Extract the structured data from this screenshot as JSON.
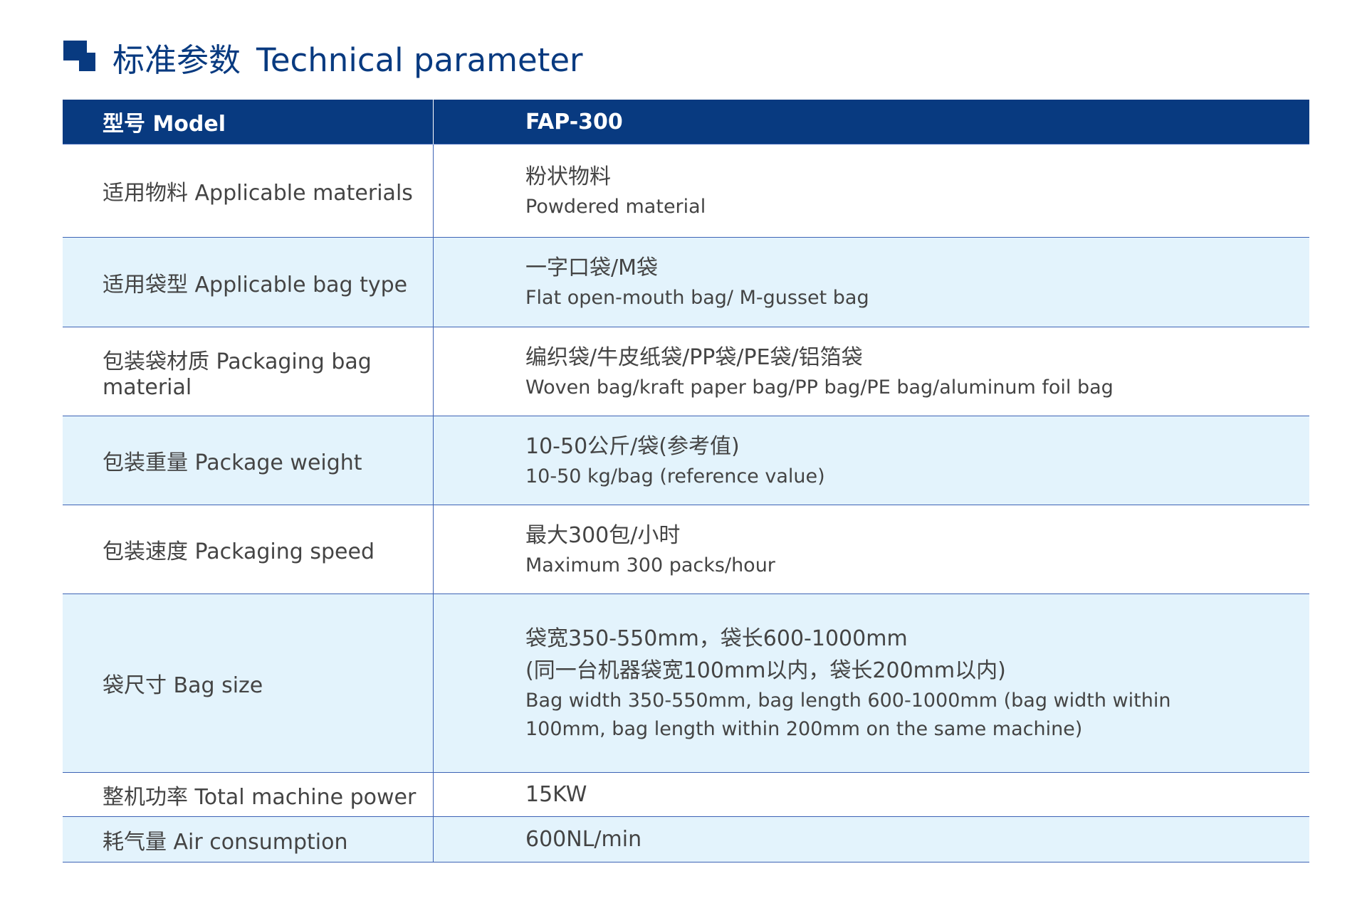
{
  "header": {
    "title_zh": "标准参数",
    "title_en": "Technical parameter",
    "accent_color": "#083a80",
    "row_alt_color": "#e3f3fc"
  },
  "table": {
    "col1_header": "型号 Model",
    "col2_header": "FAP-300",
    "rows": [
      {
        "label": "适用物料 Applicable materials",
        "value_lines": [
          "粉状物料"
        ],
        "value_en": [
          "Powdered material"
        ]
      },
      {
        "label": "适用袋型 Applicable bag type",
        "value_lines": [
          "一字口袋/M袋"
        ],
        "value_en": [
          "Flat open-mouth bag/ M-gusset bag"
        ]
      },
      {
        "label": "包装袋材质 Packaging bag material",
        "value_lines": [
          "编织袋/牛皮纸袋/PP袋/PE袋/铝箔袋"
        ],
        "value_en": [
          "Woven bag/kraft paper bag/PP bag/PE bag/aluminum foil bag"
        ]
      },
      {
        "label": "包装重量 Package weight",
        "value_lines": [
          "10-50公斤/袋(参考值)"
        ],
        "value_en": [
          "10-50 kg/bag (reference value)"
        ]
      },
      {
        "label": "包装速度 Packaging speed",
        "value_lines": [
          "最大300包/小时"
        ],
        "value_en": [
          "Maximum 300 packs/hour"
        ]
      },
      {
        "label": "袋尺寸 Bag size",
        "value_lines": [
          "袋宽350-550mm，袋长600-1000mm",
          "(同一台机器袋宽100mm以内，袋长200mm以内)"
        ],
        "value_en": [
          "Bag width 350-550mm, bag length 600-1000mm (bag width within",
          "100mm, bag length within 200mm on the same machine)"
        ]
      },
      {
        "label": "整机功率 Total machine power",
        "value_lines": [
          "15KW"
        ],
        "value_en": []
      },
      {
        "label": "耗气量 Air consumption",
        "value_lines": [
          "600NL/min"
        ],
        "value_en": []
      }
    ]
  }
}
